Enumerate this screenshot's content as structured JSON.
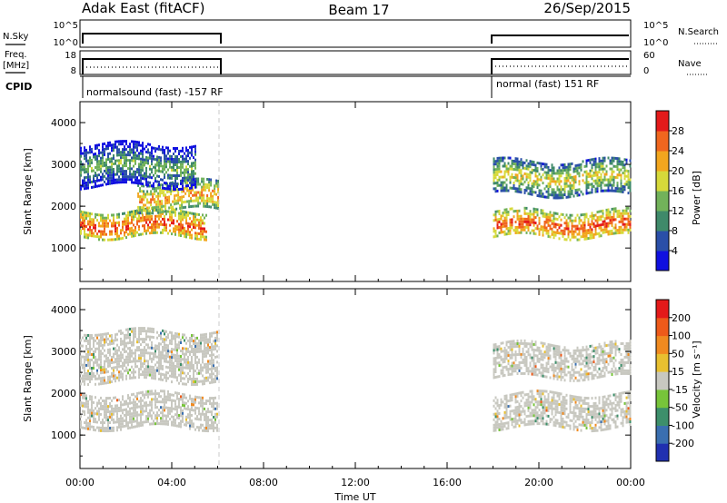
{
  "header": {
    "station": "Adak East (fitACF)",
    "beam": "Beam 17",
    "date": "26/Sep/2015"
  },
  "strips": {
    "nsky_label": "N.Sky",
    "nsky_ticks": [
      "10^5",
      "10^0"
    ],
    "nsearch_label": "N.Search",
    "freq_label_line1": "Freq.",
    "freq_label_line2": "[MHz]",
    "freq_ticks": [
      "18",
      "8"
    ],
    "nave_ticks": [
      "60",
      "0"
    ],
    "nave_label": "Nave",
    "cpid_label": "CPID",
    "cpid_left": "normalsound (fast) -157 RF",
    "cpid_right": "normal (fast) 151 RF"
  },
  "axes": {
    "ylabel": "Slant Range [km]",
    "xlabel": "Time UT",
    "xticks": [
      "00:00",
      "04:00",
      "08:00",
      "12:00",
      "16:00",
      "20:00",
      "00:00"
    ],
    "yticks": [
      "1000",
      "2000",
      "3000",
      "4000"
    ]
  },
  "power_scale": {
    "label": "Power [dB]",
    "ticks": [
      "4",
      "8",
      "12",
      "16",
      "20",
      "24",
      "28"
    ],
    "colors": [
      "#1010e0",
      "#2a4fa8",
      "#3f8a6a",
      "#72b25a",
      "#d6d93a",
      "#f2a61e",
      "#f0661e",
      "#e41a1a"
    ]
  },
  "velocity_scale": {
    "label": "Velocity [m s⁻¹]",
    "ticks": [
      "200",
      "100",
      "50",
      "15",
      "-15",
      "-50",
      "-100",
      "-200"
    ],
    "colors": [
      "#2030b0",
      "#3a6fb0",
      "#3d8f6b",
      "#77c43a",
      "#c8c8c0",
      "#e8c030",
      "#f08a20",
      "#ee5a1a",
      "#e41a1a"
    ]
  },
  "chart_data": [
    {
      "type": "heatmap",
      "title": "Power",
      "xlabel": "Time UT",
      "ylabel": "Slant Range [km]",
      "colorbar_label": "Power [dB]",
      "xlim": [
        "00:00",
        "24:00"
      ],
      "ylim": [
        200,
        4500
      ],
      "clim": [
        0,
        32
      ],
      "data_intervals_ut": [
        [
          "00:00",
          "06:00"
        ],
        [
          "18:00",
          "24:00"
        ]
      ],
      "bands": [
        {
          "ut": [
            "00:00",
            "05:30"
          ],
          "range_km": [
            1250,
            1900
          ],
          "power_db": 28
        },
        {
          "ut": [
            "02:30",
            "06:00"
          ],
          "range_km": [
            1900,
            2600
          ],
          "power_db": 24
        },
        {
          "ut": [
            "00:00",
            "05:00"
          ],
          "range_km": [
            2500,
            3500
          ],
          "power_db": 14
        },
        {
          "ut": [
            "18:00",
            "24:00"
          ],
          "range_km": [
            1250,
            1900
          ],
          "power_db": 28
        },
        {
          "ut": [
            "18:00",
            "24:00"
          ],
          "range_km": [
            2300,
            3100
          ],
          "power_db": 20
        }
      ]
    },
    {
      "type": "heatmap",
      "title": "Velocity",
      "xlabel": "Time UT",
      "ylabel": "Slant Range [km]",
      "colorbar_label": "Velocity [m s⁻¹]",
      "xlim": [
        "00:00",
        "24:00"
      ],
      "ylim": [
        200,
        4500
      ],
      "clim": [
        -250,
        250
      ],
      "data_intervals_ut": [
        [
          "00:00",
          "06:00"
        ],
        [
          "18:00",
          "24:00"
        ]
      ],
      "bands": [
        {
          "ut": [
            "00:00",
            "06:00"
          ],
          "range_km": [
            1200,
            2000
          ],
          "velocity": 0
        },
        {
          "ut": [
            "00:00",
            "06:00"
          ],
          "range_km": [
            2300,
            3500
          ],
          "velocity": 10
        },
        {
          "ut": [
            "18:00",
            "24:00"
          ],
          "range_km": [
            1200,
            2000
          ],
          "velocity": 0
        },
        {
          "ut": [
            "18:00",
            "24:00"
          ],
          "range_km": [
            2400,
            3200
          ],
          "velocity": 0
        }
      ]
    }
  ]
}
